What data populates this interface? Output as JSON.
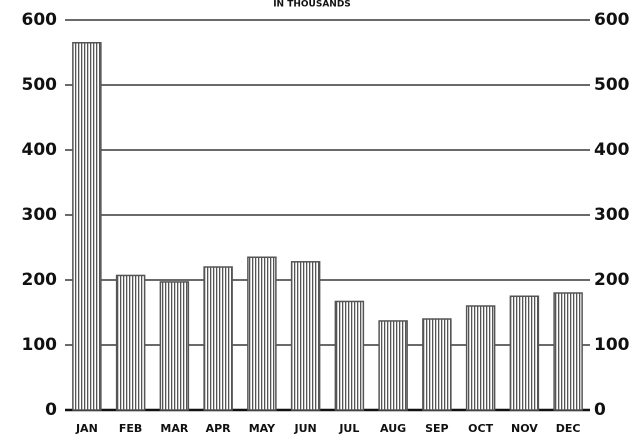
{
  "chart_data": {
    "type": "bar",
    "title": "IN THOUSANDS",
    "categories": [
      "JAN",
      "FEB",
      "MAR",
      "APR",
      "MAY",
      "JUN",
      "JUL",
      "AUG",
      "SEP",
      "OCT",
      "NOV",
      "DEC"
    ],
    "values": [
      565,
      207,
      197,
      220,
      235,
      228,
      167,
      137,
      140,
      160,
      175,
      180
    ],
    "color": "#555555",
    "ylim": [
      0,
      600
    ],
    "yticks": [
      0,
      100,
      200,
      300,
      400,
      500,
      600
    ],
    "grid": true
  }
}
